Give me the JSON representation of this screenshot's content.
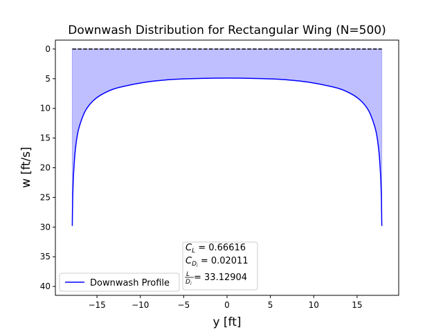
{
  "chart_data": {
    "type": "line",
    "title": "Downwash Distribution for Rectangular Wing (N=500)",
    "xlabel": "y [ft]",
    "ylabel": "w [ft/s]",
    "xlim": [
      -19.8,
      19.8
    ],
    "ylim": [
      41.5,
      -1.5
    ],
    "y_inverted": true,
    "xticks": [
      -15,
      -10,
      -5,
      0,
      5,
      10,
      15
    ],
    "yticks": [
      0,
      5,
      10,
      15,
      20,
      25,
      30,
      35,
      40
    ],
    "grid": false,
    "legend": {
      "position": "lower-left",
      "entries": [
        "Downwash Profile"
      ]
    },
    "series": [
      {
        "name": "Downwash Profile",
        "color": "#0000ff",
        "fill_color": "#8080ff",
        "x": [
          -17.85,
          -17.8,
          -17.7,
          -17.5,
          -17.2,
          -16.8,
          -16.3,
          -15.5,
          -14.5,
          -13.0,
          -11.0,
          -9.0,
          -6.0,
          -3.0,
          0,
          3.0,
          6.0,
          9.0,
          11.0,
          13.0,
          14.5,
          15.5,
          16.3,
          16.8,
          17.2,
          17.5,
          17.7,
          17.8,
          17.85
        ],
        "values": [
          29.8,
          25.0,
          21.0,
          17.0,
          14.0,
          12.0,
          10.3,
          8.8,
          7.7,
          6.7,
          6.0,
          5.5,
          5.1,
          4.95,
          4.9,
          4.95,
          5.1,
          5.5,
          6.0,
          6.7,
          7.7,
          8.8,
          10.3,
          12.0,
          14.0,
          17.0,
          21.0,
          25.0,
          29.8
        ]
      }
    ],
    "reference_line": {
      "x": [
        -17.85,
        17.85
      ],
      "y": 0,
      "style": "dashed",
      "color": "#000000"
    },
    "annotation": {
      "cl_label": "C",
      "cl_sub": "L",
      "cl_value": " = 0.66616",
      "cdi_label": "C",
      "cdi_sub": "D",
      "cdi_subsub": "i",
      "cdi_value": " = 0.02011",
      "ld_num": "L",
      "ld_den": "D",
      "ld_den_sub": "i",
      "ld_value": " = 33.12904"
    }
  }
}
